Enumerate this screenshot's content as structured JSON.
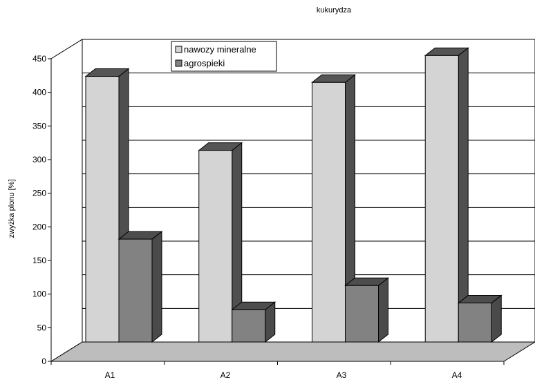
{
  "chart_data": {
    "type": "bar",
    "title": "kukurydza",
    "xlabel": "",
    "ylabel": "zwyżka plonu [%]",
    "categories": [
      "A1",
      "A2",
      "A3",
      "A4"
    ],
    "series": [
      {
        "name": "nawozy mineralne",
        "values": [
          395,
          285,
          386,
          426
        ],
        "color": "#d4d4d4"
      },
      {
        "name": "agrospieki",
        "values": [
          153,
          48,
          84,
          58
        ],
        "color": "#828282"
      }
    ],
    "ylim": [
      0,
      450
    ],
    "yticks": [
      0,
      50,
      100,
      150,
      200,
      250,
      300,
      350,
      400,
      450
    ],
    "grid": true,
    "legend_position": "top-left",
    "style": "3d-column"
  }
}
